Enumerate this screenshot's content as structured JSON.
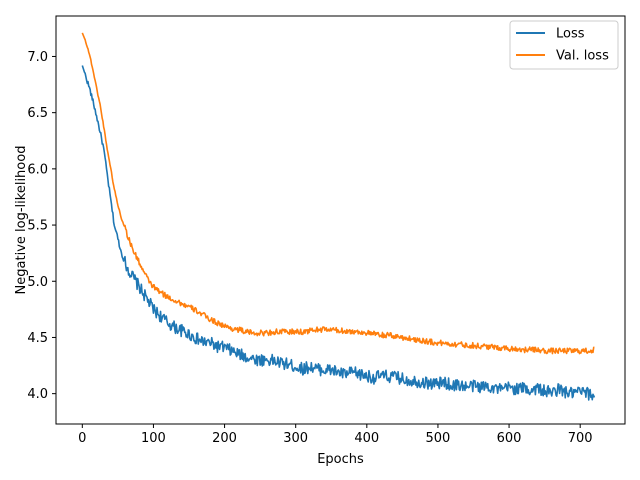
{
  "chart_data": {
    "type": "line",
    "title": "",
    "xlabel": "Epochs",
    "ylabel": "Negative log-likelihood",
    "xlim": [
      -37,
      763
    ],
    "ylim": [
      3.73,
      7.36
    ],
    "xticks": [
      0,
      100,
      200,
      300,
      400,
      500,
      600,
      700
    ],
    "yticks": [
      4.0,
      4.5,
      5.0,
      5.5,
      6.0,
      6.5,
      7.0
    ],
    "grid": false,
    "legend_position": "top-right",
    "series": [
      {
        "name": "Loss",
        "color": "#1f77b4",
        "x": [
          0,
          5,
          10,
          15,
          20,
          25,
          30,
          35,
          40,
          45,
          50,
          55,
          60,
          65,
          70,
          75,
          80,
          85,
          90,
          95,
          100,
          110,
          120,
          130,
          140,
          150,
          160,
          170,
          180,
          190,
          200,
          210,
          220,
          230,
          240,
          250,
          260,
          270,
          280,
          290,
          300,
          310,
          320,
          330,
          340,
          350,
          360,
          370,
          380,
          390,
          400,
          410,
          420,
          430,
          440,
          450,
          460,
          470,
          480,
          490,
          500,
          510,
          520,
          530,
          540,
          550,
          560,
          570,
          580,
          590,
          600,
          610,
          620,
          630,
          640,
          650,
          660,
          670,
          680,
          690,
          700,
          710,
          720
        ],
        "values": [
          6.92,
          6.82,
          6.72,
          6.6,
          6.47,
          6.33,
          6.18,
          5.95,
          5.72,
          5.5,
          5.38,
          5.25,
          5.17,
          5.1,
          5.05,
          5.0,
          4.95,
          4.9,
          4.85,
          4.8,
          4.75,
          4.69,
          4.63,
          4.59,
          4.56,
          4.53,
          4.49,
          4.46,
          4.45,
          4.42,
          4.41,
          4.38,
          4.35,
          4.33,
          4.31,
          4.3,
          4.3,
          4.29,
          4.27,
          4.26,
          4.24,
          4.22,
          4.24,
          4.22,
          4.21,
          4.21,
          4.19,
          4.17,
          4.19,
          4.17,
          4.16,
          4.14,
          4.16,
          4.15,
          4.15,
          4.13,
          4.12,
          4.11,
          4.1,
          4.09,
          4.09,
          4.1,
          4.07,
          4.08,
          4.06,
          4.07,
          4.06,
          4.07,
          4.05,
          4.03,
          4.06,
          4.04,
          4.05,
          4.03,
          4.05,
          4.02,
          4.01,
          4.04,
          4.01,
          4.0,
          4.02,
          4.0,
          3.98
        ]
      },
      {
        "name": "Val. loss",
        "color": "#ff7f0e",
        "x": [
          0,
          5,
          10,
          15,
          20,
          25,
          30,
          35,
          40,
          45,
          50,
          55,
          60,
          65,
          70,
          75,
          80,
          85,
          90,
          95,
          100,
          110,
          120,
          130,
          140,
          150,
          160,
          170,
          180,
          190,
          200,
          210,
          220,
          230,
          240,
          250,
          260,
          270,
          280,
          290,
          300,
          310,
          320,
          330,
          340,
          350,
          360,
          370,
          380,
          390,
          400,
          410,
          420,
          430,
          440,
          450,
          460,
          470,
          480,
          490,
          500,
          510,
          520,
          530,
          540,
          550,
          560,
          570,
          580,
          590,
          600,
          610,
          620,
          630,
          640,
          650,
          660,
          670,
          680,
          690,
          700,
          710,
          720
        ],
        "values": [
          7.21,
          7.13,
          7.02,
          6.88,
          6.72,
          6.57,
          6.38,
          6.18,
          6.0,
          5.82,
          5.68,
          5.56,
          5.48,
          5.38,
          5.3,
          5.23,
          5.17,
          5.1,
          5.04,
          4.99,
          4.95,
          4.9,
          4.86,
          4.83,
          4.8,
          4.77,
          4.74,
          4.7,
          4.66,
          4.63,
          4.6,
          4.58,
          4.57,
          4.55,
          4.54,
          4.54,
          4.54,
          4.55,
          4.55,
          4.55,
          4.55,
          4.55,
          4.56,
          4.57,
          4.57,
          4.57,
          4.56,
          4.56,
          4.55,
          4.55,
          4.54,
          4.53,
          4.52,
          4.52,
          4.51,
          4.5,
          4.49,
          4.48,
          4.47,
          4.46,
          4.45,
          4.45,
          4.44,
          4.44,
          4.43,
          4.43,
          4.42,
          4.42,
          4.41,
          4.41,
          4.4,
          4.4,
          4.39,
          4.39,
          4.39,
          4.38,
          4.38,
          4.38,
          4.38,
          4.38,
          4.38,
          4.38,
          4.39
        ]
      }
    ]
  }
}
